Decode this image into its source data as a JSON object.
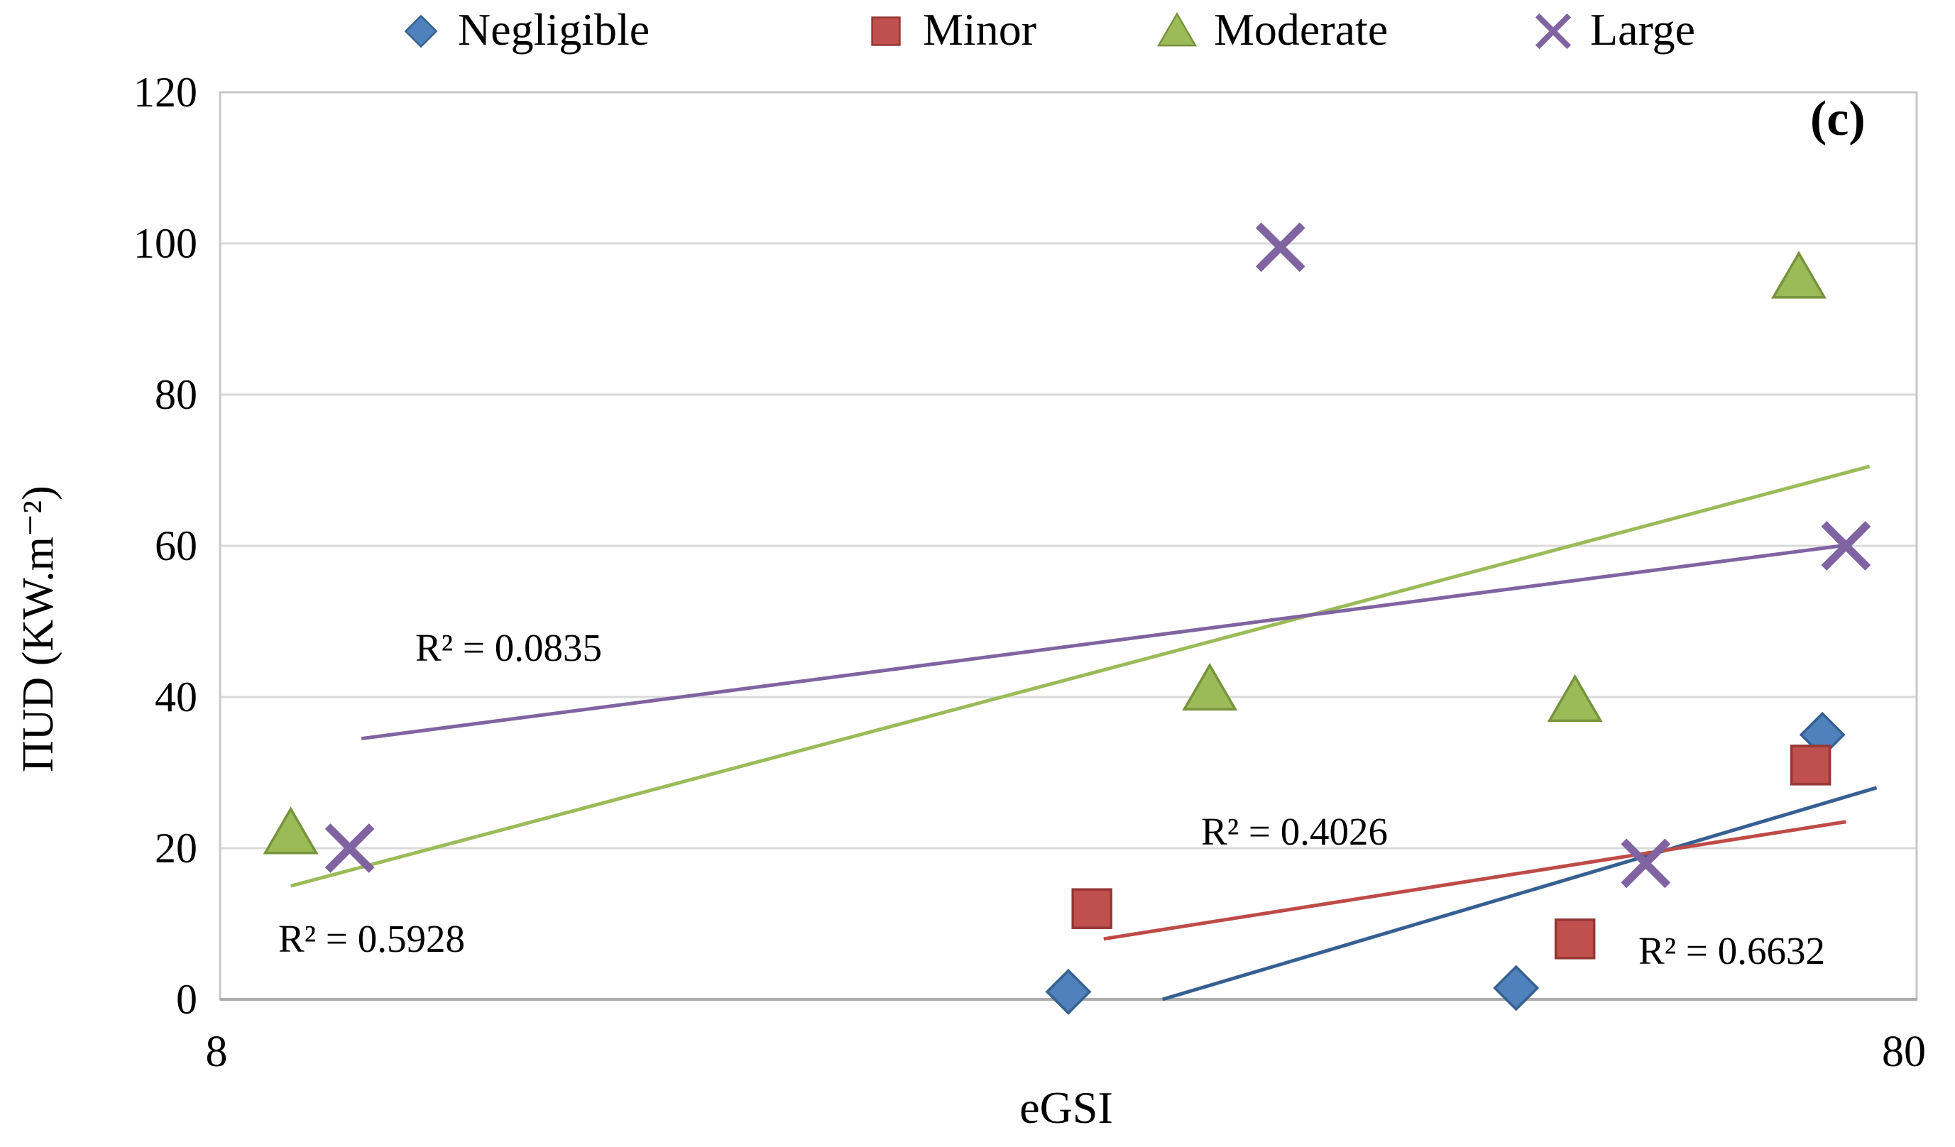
{
  "figure": {
    "panel_label": "(c)"
  },
  "chart_data": {
    "type": "scatter",
    "title": "",
    "xlabel": "eGSI",
    "ylabel": "ΠUD (KW.m⁻²)",
    "xlim": [
      8,
      80
    ],
    "ylim": [
      0,
      120
    ],
    "xtick_labels": [
      "8",
      "80"
    ],
    "ytick_labels_top_down": [
      "120",
      "100",
      "80",
      "60",
      "40",
      "20",
      "0"
    ],
    "grid": "horizontal gridlines every 20 units",
    "legend_position": "top",
    "colors": {
      "gridline": "#D9D9D9",
      "plot_border": "#C8C8C8",
      "x_axis_line": "#ACACAC"
    },
    "series": [
      {
        "name": "Negligible",
        "marker": "diamond",
        "color": "#4F81BD",
        "edge_color": "#36618E",
        "trend_color": "#376092",
        "points": [
          [
            44,
            1
          ],
          [
            63,
            1.5
          ],
          [
            76,
            35
          ]
        ],
        "trendline": {
          "x1": 48,
          "y1": 0,
          "x2": 78.3,
          "y2": 28
        },
        "r2_label": "R² = 0.6632"
      },
      {
        "name": "Minor",
        "marker": "square",
        "color": "#C0504D",
        "edge_color": "#953735",
        "trend_color": "#BE4B48",
        "points": [
          [
            45,
            12
          ],
          [
            65.5,
            8
          ],
          [
            75.5,
            31
          ]
        ],
        "trendline": {
          "x1": 45.5,
          "y1": 8,
          "x2": 77,
          "y2": 23.5
        },
        "r2_label": "R² = 0.4026"
      },
      {
        "name": "Moderate",
        "marker": "triangle",
        "color": "#9BBB59",
        "edge_color": "#77933C",
        "trend_color": "#9BBB59",
        "points": [
          [
            11,
            22
          ],
          [
            50,
            41
          ],
          [
            65.5,
            39.5
          ],
          [
            75,
            95.5
          ]
        ],
        "trendline": {
          "x1": 11,
          "y1": 15,
          "x2": 78,
          "y2": 70.5
        },
        "r2_label": "R² = 0.5928"
      },
      {
        "name": "Large",
        "marker": "x",
        "color": "#8064A2",
        "edge_color": "#8064A2",
        "trend_color": "#8064A2",
        "points": [
          [
            13.5,
            20
          ],
          [
            53,
            99.5
          ],
          [
            68.5,
            18
          ],
          [
            77,
            60
          ]
        ],
        "trendline": {
          "x1": 14,
          "y1": 34.5,
          "x2": 76.8,
          "y2": 60
        },
        "r2_label": "R² = 0.0835"
      }
    ]
  }
}
